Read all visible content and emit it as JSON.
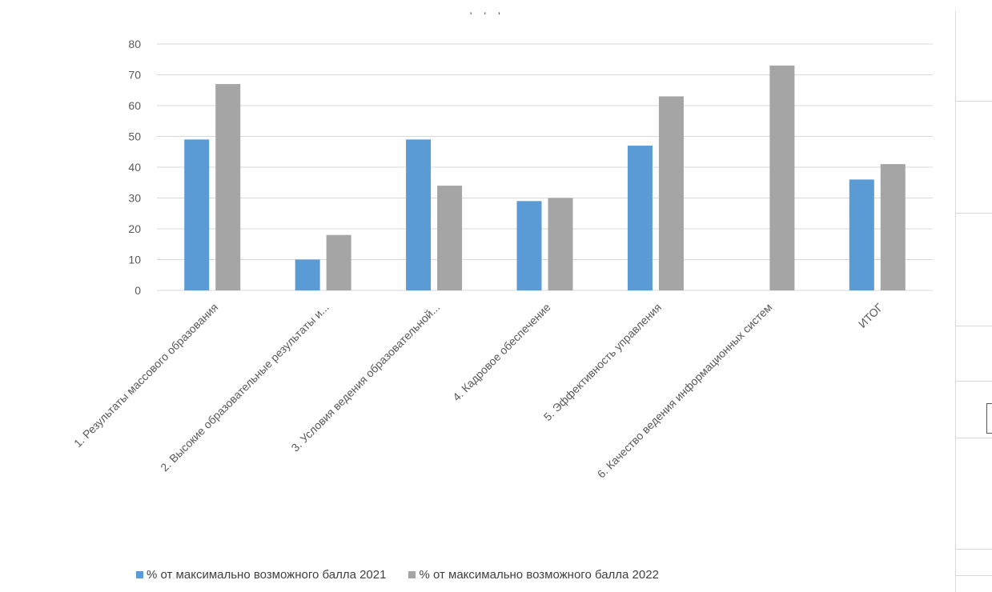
{
  "chart_data": {
    "type": "bar",
    "title": "",
    "xlabel": "",
    "ylabel": "",
    "ylim": [
      0,
      80
    ],
    "yticks": [
      0,
      10,
      20,
      30,
      40,
      50,
      60,
      70,
      80
    ],
    "grid": true,
    "legend_position": "bottom",
    "categories": [
      "1. Результаты массового образования",
      "2. Высокие образовательные результаты и...",
      "3. Условия ведения образовательной...",
      "4. Кадровое обеспечение",
      "5. Эффективность управления",
      "6. Качество ведения информационных систем",
      "ИТОГ"
    ],
    "series": [
      {
        "name": "% от максимально возможного балла 2021",
        "color": "#5b9bd5",
        "values": [
          49,
          10,
          49,
          29,
          47,
          null,
          36
        ]
      },
      {
        "name": "% от максимально возможного балла 2022",
        "color": "#a5a5a5",
        "values": [
          67,
          18,
          34,
          30,
          63,
          73,
          41
        ]
      }
    ]
  },
  "top_fragment": "' ' '"
}
